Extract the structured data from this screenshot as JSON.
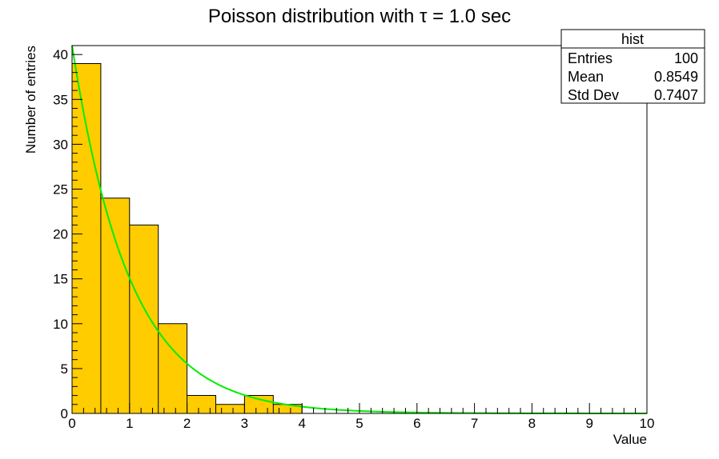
{
  "chart_data": {
    "type": "bar",
    "title": "Poisson distribution with τ = 1.0 sec",
    "xlabel": "Value",
    "ylabel": "Number of entries",
    "xlim": [
      0,
      10
    ],
    "ylim": [
      0,
      41
    ],
    "x_ticks": [
      "0",
      "1",
      "2",
      "3",
      "4",
      "5",
      "6",
      "7",
      "8",
      "9",
      "10"
    ],
    "y_ticks": [
      "0",
      "5",
      "10",
      "15",
      "20",
      "25",
      "30",
      "35",
      "40"
    ],
    "bin_width": 0.5,
    "bins": [
      {
        "x": 0.0,
        "value": 39
      },
      {
        "x": 0.5,
        "value": 24
      },
      {
        "x": 1.0,
        "value": 21
      },
      {
        "x": 1.5,
        "value": 10
      },
      {
        "x": 2.0,
        "value": 2
      },
      {
        "x": 2.5,
        "value": 1
      },
      {
        "x": 3.0,
        "value": 2
      },
      {
        "x": 3.5,
        "value": 1
      },
      {
        "x": 4.0,
        "value": 0
      },
      {
        "x": 4.5,
        "value": 0
      },
      {
        "x": 5.0,
        "value": 0
      },
      {
        "x": 5.5,
        "value": 0
      },
      {
        "x": 6.0,
        "value": 0
      },
      {
        "x": 6.5,
        "value": 0
      },
      {
        "x": 7.0,
        "value": 0
      },
      {
        "x": 7.5,
        "value": 0
      },
      {
        "x": 8.0,
        "value": 0
      },
      {
        "x": 8.5,
        "value": 0
      },
      {
        "x": 9.0,
        "value": 0
      },
      {
        "x": 9.5,
        "value": 0
      }
    ],
    "fit": {
      "function": "exponential",
      "amplitude": 41,
      "tau": 1.0
    },
    "colors": {
      "bar_fill": "#ffcc00",
      "bar_stroke": "#000000",
      "fit_line": "#00ee00",
      "frame": "#000000"
    },
    "grid": false,
    "stats_box": {
      "title": "hist",
      "placement": "top-right",
      "rows": [
        {
          "label": "Entries",
          "value": "100"
        },
        {
          "label": "Mean",
          "value": "0.8549"
        },
        {
          "label": "Std Dev",
          "value": "0.7407"
        }
      ]
    }
  }
}
